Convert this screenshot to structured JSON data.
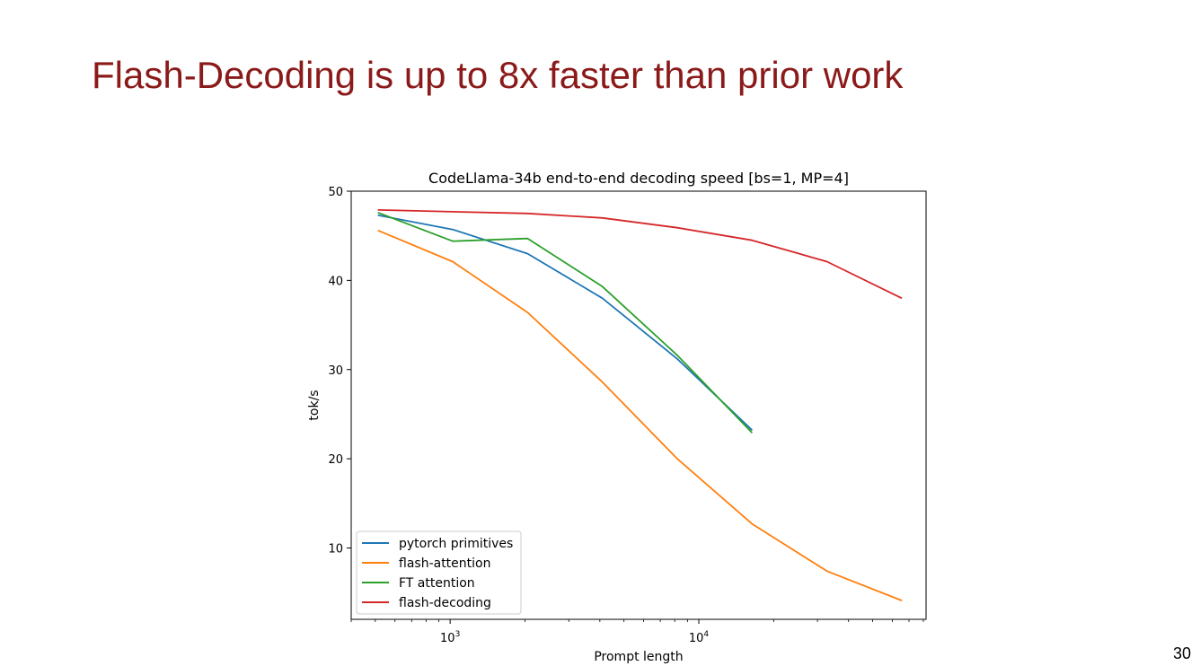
{
  "slide": {
    "title": "Flash-Decoding is up to 8x faster than prior work",
    "page_number": "30"
  },
  "chart_data": {
    "type": "line",
    "title": "CodeLlama-34b end-to-end decoding speed [bs=1, MP=4]",
    "xlabel": "Prompt length",
    "ylabel": "tok/s",
    "xscale": "log",
    "xlim": [
      400,
      82000
    ],
    "ylim": [
      2,
      50
    ],
    "yticks": [
      10,
      20,
      30,
      40,
      50
    ],
    "xticks": [
      {
        "value": 1000,
        "base": "10",
        "exp": "3"
      },
      {
        "value": 10000,
        "base": "10",
        "exp": "4"
      }
    ],
    "grid": false,
    "legend_position": "lower-left",
    "series": [
      {
        "name": "pytorch primitives",
        "color": "#1f77b4",
        "x": [
          512,
          1024,
          2048,
          4096,
          8192,
          16384
        ],
        "y": [
          47.3,
          45.7,
          43.0,
          38.0,
          31.2,
          23.2
        ]
      },
      {
        "name": "flash-attention",
        "color": "#ff7f0e",
        "x": [
          512,
          1024,
          2048,
          4096,
          8192,
          16384,
          32768,
          65536
        ],
        "y": [
          45.6,
          42.1,
          36.4,
          28.6,
          20.0,
          12.7,
          7.4,
          4.1
        ]
      },
      {
        "name": "FT attention",
        "color": "#2ca02c",
        "x": [
          512,
          1024,
          2048,
          4096,
          8192,
          16384
        ],
        "y": [
          47.6,
          44.4,
          44.7,
          39.3,
          31.6,
          22.9
        ]
      },
      {
        "name": "flash-decoding",
        "color": "#d62728",
        "x": [
          512,
          1024,
          2048,
          4096,
          8192,
          16384,
          32768,
          65536
        ],
        "y": [
          47.9,
          47.7,
          47.5,
          47.0,
          45.9,
          44.5,
          42.1,
          38.0
        ]
      }
    ]
  }
}
